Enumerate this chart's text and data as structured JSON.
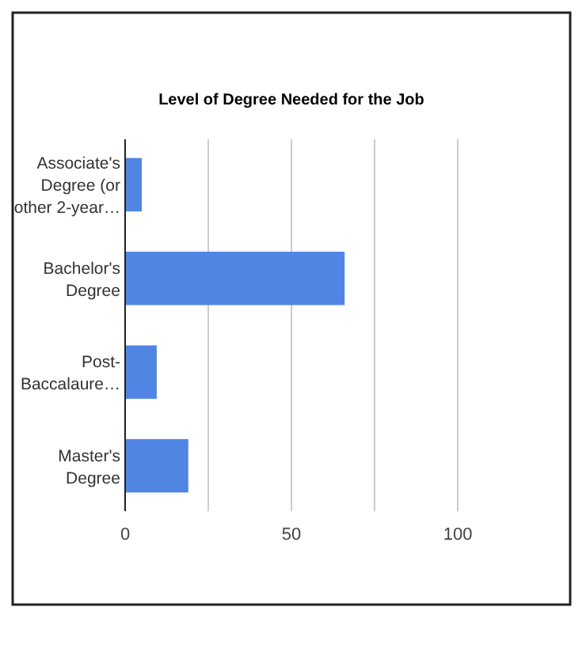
{
  "chart_data": {
    "type": "bar",
    "orientation": "horizontal",
    "title": "Level of Degree Needed for the Job",
    "categories": [
      "Associate's Degree (or other 2-year…",
      "Bachelor's Degree",
      "Post-Baccalaure…",
      "Master's Degree"
    ],
    "values": [
      5,
      66,
      9.5,
      19
    ],
    "color": "#5185e4",
    "xlim": [
      0,
      100
    ],
    "xticks": [
      0,
      {
        "value": 25,
        "label": null
      },
      50,
      {
        "value": 75,
        "label": null
      },
      100
    ],
    "grid": "x"
  }
}
